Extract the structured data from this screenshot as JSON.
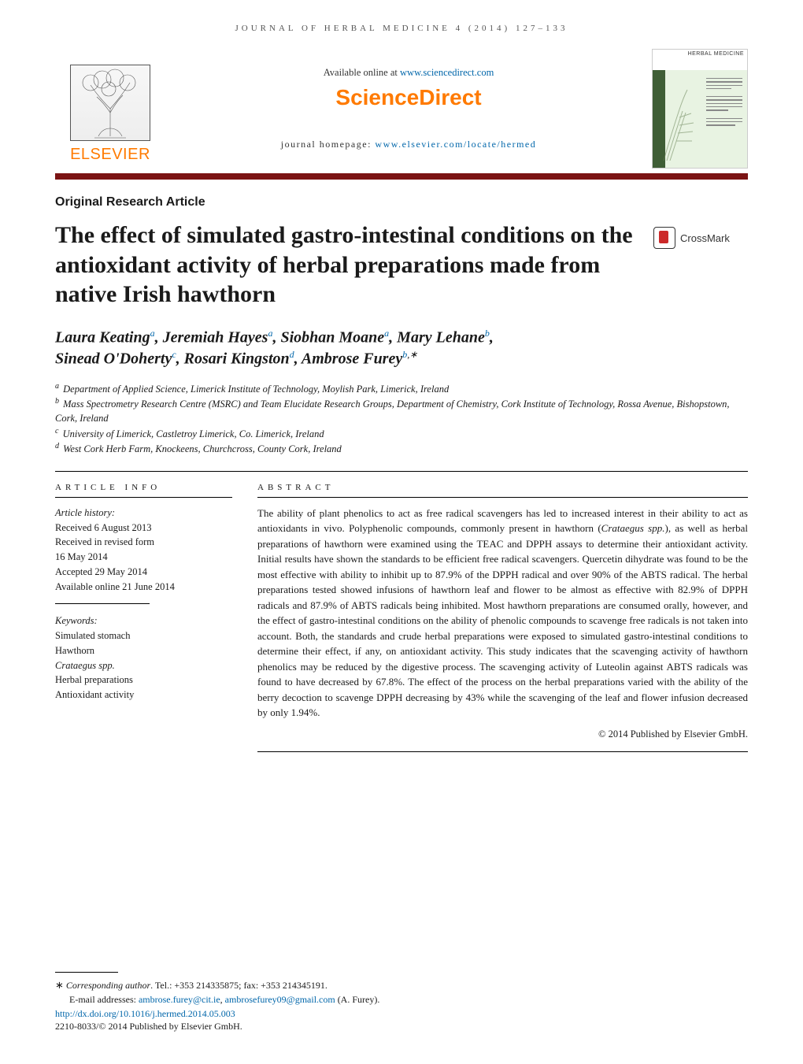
{
  "running_header": "JOURNAL OF HERBAL MEDICINE 4 (2014) 127–133",
  "header": {
    "available_text": "Available online at ",
    "available_url": "www.sciencedirect.com",
    "sciencedirect": "ScienceDirect",
    "homepage_label": "journal homepage: ",
    "homepage_url": "www.elsevier.com/locate/hermed",
    "elsevier": "ELSEVIER",
    "cover_title": "HERBAL MEDICINE"
  },
  "article_type": "Original Research Article",
  "title": "The effect of simulated gastro-intestinal conditions on the antioxidant activity of herbal preparations made from native Irish hawthorn",
  "crossmark": "CrossMark",
  "authors": [
    {
      "name": "Laura Keating",
      "aff": "a"
    },
    {
      "name": "Jeremiah Hayes",
      "aff": "a"
    },
    {
      "name": "Siobhan Moane",
      "aff": "a"
    },
    {
      "name": "Mary Lehane",
      "aff": "b"
    },
    {
      "name": "Sinead O'Doherty",
      "aff": "c"
    },
    {
      "name": "Rosari Kingston",
      "aff": "d"
    },
    {
      "name": "Ambrose Furey",
      "aff": "b",
      "corr": true
    }
  ],
  "affiliations": [
    {
      "key": "a",
      "text": "Department of Applied Science, Limerick Institute of Technology, Moylish Park, Limerick, Ireland"
    },
    {
      "key": "b",
      "text": "Mass Spectrometry Research Centre (MSRC) and Team Elucidate Research Groups, Department of Chemistry, Cork Institute of Technology, Rossa Avenue, Bishopstown, Cork, Ireland"
    },
    {
      "key": "c",
      "text": "University of Limerick, Castletroy Limerick, Co. Limerick, Ireland"
    },
    {
      "key": "d",
      "text": "West Cork Herb Farm, Knockeens, Churchcross, County Cork, Ireland"
    }
  ],
  "article_info_heading": "ARTICLE INFO",
  "abstract_heading": "ABSTRACT",
  "history": {
    "label": "Article history:",
    "received": "Received 6 August 2013",
    "revised1": "Received in revised form",
    "revised2": "16 May 2014",
    "accepted": "Accepted 29 May 2014",
    "online": "Available online 21 June 2014"
  },
  "keywords_label": "Keywords:",
  "keywords": [
    "Simulated stomach",
    "Hawthorn",
    "Crataegus spp.",
    "Herbal preparations",
    "Antioxidant activity"
  ],
  "abstract": "The ability of plant phenolics to act as free radical scavengers has led to increased interest in their ability to act as antioxidants in vivo. Polyphenolic compounds, commonly present in hawthorn (Crataegus spp.), as well as herbal preparations of hawthorn were examined using the TEAC and DPPH assays to determine their antioxidant activity. Initial results have shown the standards to be efficient free radical scavengers. Quercetin dihydrate was found to be the most effective with ability to inhibit up to 87.9% of the DPPH radical and over 90% of the ABTS radical. The herbal preparations tested showed infusions of hawthorn leaf and flower to be almost as effective with 82.9% of DPPH radicals and 87.9% of ABTS radicals being inhibited. Most hawthorn preparations are consumed orally, however, and the effect of gastro-intestinal conditions on the ability of phenolic compounds to scavenge free radicals is not taken into account. Both, the standards and crude herbal preparations were exposed to simulated gastro-intestinal conditions to determine their effect, if any, on antioxidant activity. This study indicates that the scavenging activity of hawthorn phenolics may be reduced by the digestive process. The scavenging activity of Luteolin against ABTS radicals was found to have decreased by 67.8%. The effect of the process on the herbal preparations varied with the ability of the berry decoction to scavenge DPPH decreasing by 43% while the scavenging of the leaf and flower infusion decreased by only 1.94%.",
  "copyright": "© 2014 Published by Elsevier GmbH.",
  "footer": {
    "corr_label": "Corresponding author",
    "corr_contact": ". Tel.: +353 214335875; fax: +353 214345191.",
    "email_label": "E-mail addresses: ",
    "email1": "ambrose.furey@cit.ie",
    "email2": "ambrosefurey09@gmail.com",
    "email_suffix": " (A. Furey).",
    "doi": "http://dx.doi.org/10.1016/j.hermed.2014.05.003",
    "issn_line": "2210-8033/© 2014 Published by Elsevier GmbH."
  },
  "colors": {
    "orange": "#ff7a00",
    "darkred": "#7b1414",
    "link": "#0066aa",
    "text": "#1a1a1a"
  }
}
